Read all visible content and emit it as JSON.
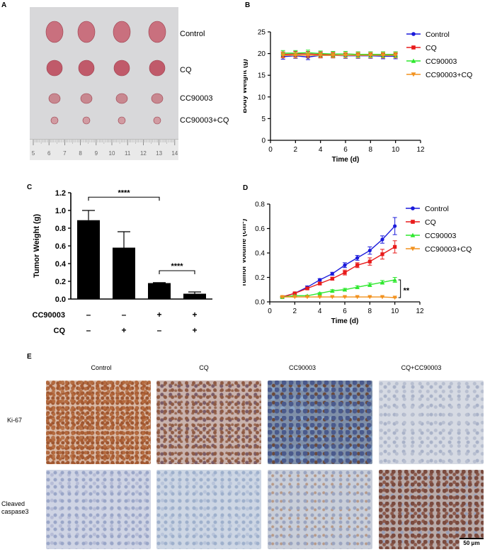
{
  "panel_labels": {
    "a": "A",
    "b": "B",
    "c": "C",
    "d": "D",
    "e": "E"
  },
  "panelA": {
    "row_labels": [
      "Control",
      "CQ",
      "CC90003",
      "CC90003+CQ"
    ],
    "ruler_labels": [
      "5",
      "6",
      "7",
      "8",
      "9",
      "10",
      "11",
      "12",
      "13",
      "14"
    ]
  },
  "chart_data": [
    {
      "id": "B",
      "type": "line",
      "xlabel": "Time (d)",
      "ylabel": "Body Weight (g)",
      "xlim": [
        0,
        12
      ],
      "ylim": [
        0,
        25
      ],
      "xticks": [
        "0",
        "2",
        "4",
        "6",
        "8",
        "10",
        "12"
      ],
      "yticks": [
        "0",
        "5",
        "10",
        "15",
        "20",
        "25"
      ],
      "x": [
        1,
        2,
        3,
        4,
        5,
        6,
        7,
        8,
        9,
        10
      ],
      "legend": "right",
      "series": [
        {
          "name": "Control",
          "color": "#1a1adb",
          "marker": "circle",
          "values": [
            19.3,
            19.5,
            19.2,
            19.6,
            19.6,
            19.5,
            19.5,
            19.5,
            19.4,
            19.4
          ]
        },
        {
          "name": "CQ",
          "color": "#e81b1b",
          "marker": "square",
          "values": [
            19.8,
            19.9,
            19.9,
            19.8,
            19.8,
            19.9,
            19.8,
            19.8,
            19.8,
            19.8
          ]
        },
        {
          "name": "CC90003",
          "color": "#2ee82e",
          "marker": "triangle-up",
          "values": [
            20.1,
            20.1,
            20.2,
            20.0,
            19.9,
            19.9,
            19.8,
            19.8,
            19.8,
            19.8
          ]
        },
        {
          "name": "CC90003+CQ",
          "color": "#f2921f",
          "marker": "triangle-down",
          "values": [
            19.6,
            19.6,
            19.6,
            19.6,
            19.6,
            19.6,
            19.6,
            19.6,
            19.6,
            19.6
          ]
        }
      ]
    },
    {
      "id": "C",
      "type": "bar",
      "ylabel": "Tumor Weight (g)",
      "ylim": [
        0,
        1.2
      ],
      "yticks": [
        "0.0",
        "0.2",
        "0.4",
        "0.6",
        "0.8",
        "1.0",
        "1.2"
      ],
      "values": [
        0.89,
        0.58,
        0.18,
        0.06
      ],
      "errors": [
        0.11,
        0.18,
        0.005,
        0.02
      ],
      "table_rows": [
        {
          "label": "CC90003",
          "signs": [
            "–",
            "–",
            "+",
            "+"
          ]
        },
        {
          "label": "CQ",
          "signs": [
            "–",
            "+",
            "–",
            "+"
          ]
        }
      ],
      "annotations": [
        "****",
        "****"
      ]
    },
    {
      "id": "D",
      "type": "line",
      "xlabel": "Time (d)",
      "ylabel_main": "Tumor Volume (cm",
      "ylabel_sup": "3",
      "ylabel_end": ")",
      "xlim": [
        0,
        12
      ],
      "ylim": [
        0,
        0.8
      ],
      "xticks": [
        "0",
        "2",
        "4",
        "6",
        "8",
        "10",
        "12"
      ],
      "yticks": [
        "0.0",
        "0.2",
        "0.4",
        "0.6",
        "0.8"
      ],
      "x": [
        1,
        2,
        3,
        4,
        5,
        6,
        7,
        8,
        9,
        10
      ],
      "legend": "top-right",
      "annotation": "**",
      "series": [
        {
          "name": "Control",
          "color": "#1a1adb",
          "marker": "circle",
          "values": [
            0.04,
            0.07,
            0.12,
            0.18,
            0.23,
            0.3,
            0.36,
            0.42,
            0.51,
            0.62
          ],
          "errors": [
            0.004,
            0.006,
            0.01,
            0.01,
            0.012,
            0.02,
            0.02,
            0.03,
            0.03,
            0.07
          ]
        },
        {
          "name": "CQ",
          "color": "#e81b1b",
          "marker": "square",
          "values": [
            0.04,
            0.07,
            0.11,
            0.15,
            0.19,
            0.24,
            0.3,
            0.33,
            0.39,
            0.45
          ],
          "errors": [
            0.004,
            0.006,
            0.01,
            0.01,
            0.012,
            0.02,
            0.02,
            0.03,
            0.04,
            0.05
          ]
        },
        {
          "name": "CC90003",
          "color": "#2ee82e",
          "marker": "triangle-up",
          "values": [
            0.04,
            0.05,
            0.05,
            0.07,
            0.09,
            0.1,
            0.12,
            0.14,
            0.16,
            0.18
          ],
          "errors": [
            0.003,
            0.004,
            0.005,
            0.006,
            0.01,
            0.01,
            0.012,
            0.015,
            0.015,
            0.02
          ]
        },
        {
          "name": "CC90003+CQ",
          "color": "#f2921f",
          "marker": "triangle-down",
          "values": [
            0.04,
            0.04,
            0.04,
            0.04,
            0.04,
            0.04,
            0.04,
            0.04,
            0.04,
            0.035
          ],
          "errors": [
            0.002,
            0.002,
            0.002,
            0.002,
            0.002,
            0.002,
            0.002,
            0.002,
            0.002,
            0.002
          ]
        }
      ]
    }
  ],
  "panelE": {
    "columns": [
      "Control",
      "CQ",
      "CC90003",
      "CQ+CC90003"
    ],
    "rows": [
      {
        "label_lines": [
          "Ki-67"
        ]
      },
      {
        "label_lines": [
          "Cleaved",
          "caspase3"
        ]
      }
    ],
    "scale_bar": "50 μm"
  }
}
